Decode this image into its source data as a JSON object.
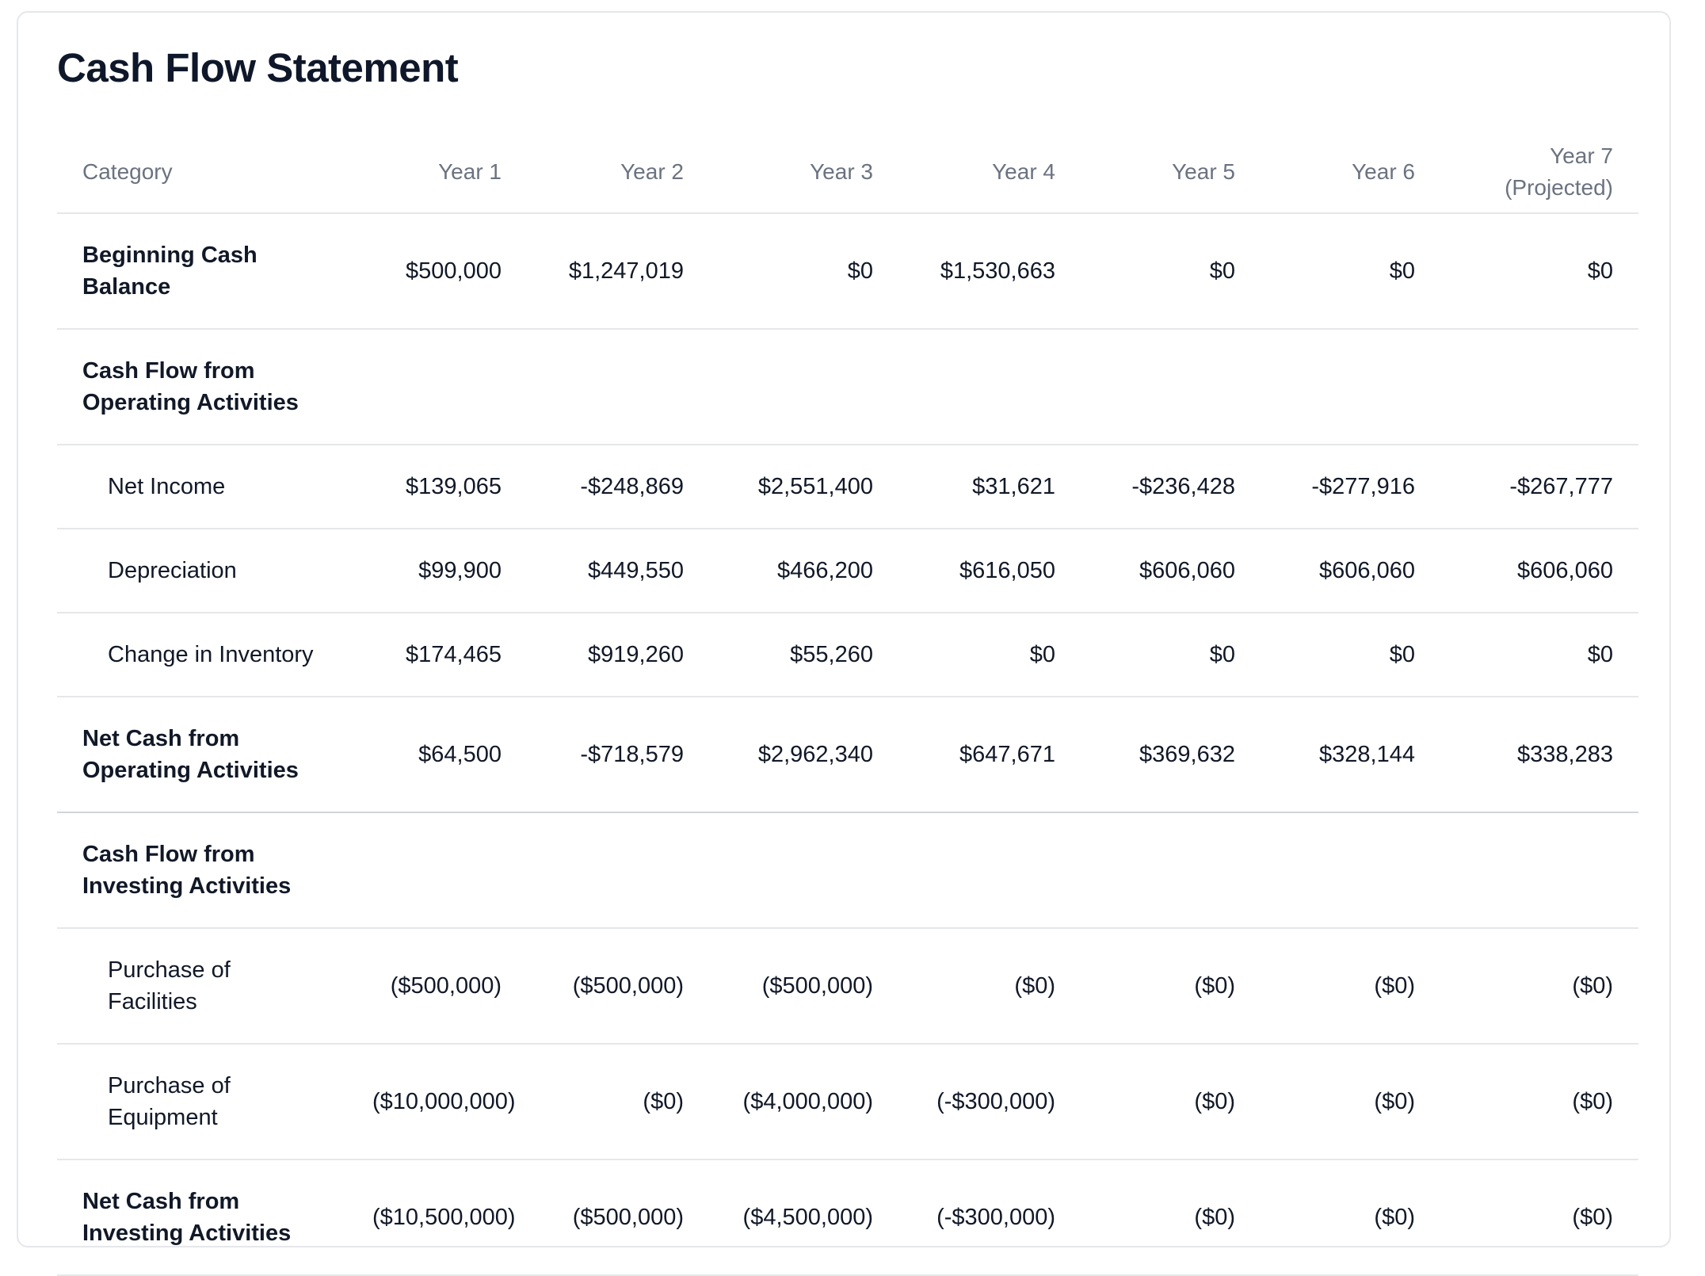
{
  "title": "Cash Flow Statement",
  "headers": [
    "Category",
    "Year 1",
    "Year 2",
    "Year 3",
    "Year 4",
    "Year 5",
    "Year 6",
    "Year 7\n(Projected)"
  ],
  "rows": [
    {
      "label": "Beginning Cash Balance",
      "values": [
        "$500,000",
        "$1,247,019",
        "$0",
        "$1,530,663",
        "$0",
        "$0",
        "$0"
      ]
    },
    {
      "label": "Cash Flow from Operating Activities",
      "values": [
        "",
        "",
        "",
        "",
        "",
        "",
        ""
      ]
    },
    {
      "label": "Net Income",
      "values": [
        "$139,065",
        "-$248,869",
        "$2,551,400",
        "$31,621",
        "-$236,428",
        "-$277,916",
        "-$267,777"
      ]
    },
    {
      "label": "Depreciation",
      "values": [
        "$99,900",
        "$449,550",
        "$466,200",
        "$616,050",
        "$606,060",
        "$606,060",
        "$606,060"
      ]
    },
    {
      "label": "Change in Inventory",
      "values": [
        "$174,465",
        "$919,260",
        "$55,260",
        "$0",
        "$0",
        "$0",
        "$0"
      ]
    },
    {
      "label": "Net Cash from Operating Activities",
      "values": [
        "$64,500",
        "-$718,579",
        "$2,962,340",
        "$647,671",
        "$369,632",
        "$328,144",
        "$338,283"
      ]
    },
    {
      "label": "Cash Flow from Investing Activities",
      "values": [
        "",
        "",
        "",
        "",
        "",
        "",
        ""
      ]
    },
    {
      "label": "Purchase of Facilities",
      "values": [
        "($500,000)",
        "($500,000)",
        "($500,000)",
        "($0)",
        "($0)",
        "($0)",
        "($0)"
      ]
    },
    {
      "label": "Purchase of Equipment",
      "values": [
        "($10,000,000)",
        "($0)",
        "($4,000,000)",
        "(-$300,000)",
        "($0)",
        "($0)",
        "($0)"
      ]
    },
    {
      "label": "Net Cash from Investing Activities",
      "values": [
        "($10,500,000)",
        "($500,000)",
        "($4,500,000)",
        "(-$300,000)",
        "($0)",
        "($0)",
        "($0)"
      ]
    }
  ]
}
